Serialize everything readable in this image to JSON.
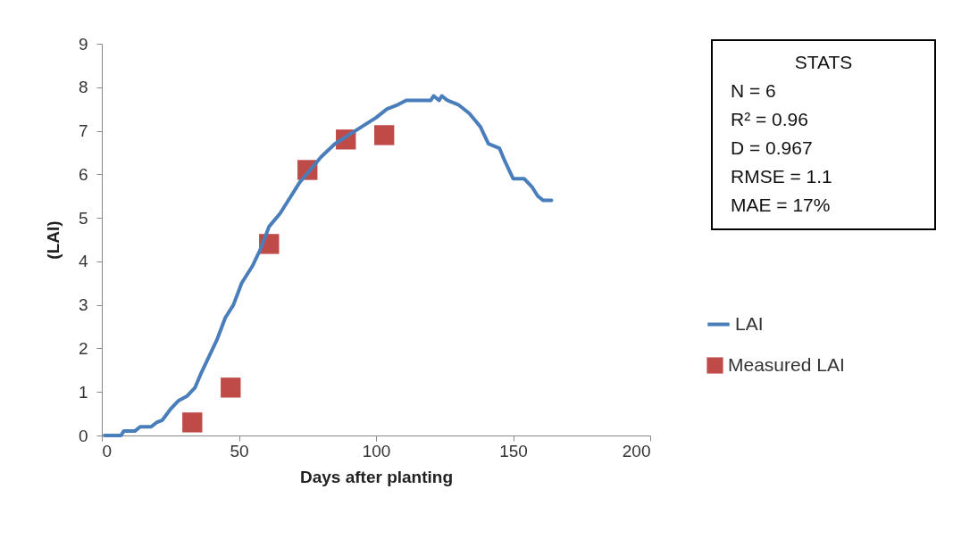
{
  "chart_data": {
    "type": "line",
    "xlabel": "Days after planting",
    "ylabel": "(LAI)",
    "xlim": [
      0,
      200
    ],
    "xticks": [
      0,
      50,
      100,
      150,
      200
    ],
    "ylim": [
      0,
      9
    ],
    "yticks": [
      0,
      1,
      2,
      3,
      4,
      5,
      6,
      7,
      8,
      9
    ],
    "grid": false,
    "legend": "right",
    "annotations": [
      "STATS",
      "N = 6",
      "R² = 0.96",
      "D = 0.967",
      "RMSE = 1.1",
      "MAE = 17%"
    ],
    "series": [
      {
        "name": "LAI",
        "color": "#4a7ebb",
        "x": [
          1,
          7,
          8,
          12,
          14,
          18,
          20,
          22,
          25,
          28,
          31,
          34,
          36,
          39,
          42,
          45,
          48,
          51,
          55,
          58,
          61,
          65,
          69,
          72,
          76,
          80,
          85,
          90,
          95,
          100,
          104,
          108,
          111,
          120,
          121,
          123,
          124,
          126,
          130,
          134,
          138,
          141,
          145,
          147,
          150,
          154,
          157,
          159,
          161,
          164
        ],
        "values": [
          0,
          0,
          0.1,
          0.1,
          0.2,
          0.2,
          0.3,
          0.35,
          0.6,
          0.8,
          0.9,
          1.1,
          1.4,
          1.8,
          2.2,
          2.7,
          3.0,
          3.5,
          3.9,
          4.3,
          4.8,
          5.1,
          5.5,
          5.8,
          6.1,
          6.4,
          6.7,
          6.9,
          7.1,
          7.3,
          7.5,
          7.6,
          7.7,
          7.7,
          7.8,
          7.7,
          7.8,
          7.7,
          7.6,
          7.4,
          7.1,
          6.7,
          6.6,
          6.3,
          5.9,
          5.9,
          5.7,
          5.5,
          5.4,
          5.4
        ]
      },
      {
        "name": "Measured LAI",
        "type": "scatter",
        "marker": "square",
        "color": "#be4b48",
        "x": [
          33,
          47,
          61,
          75,
          89,
          103
        ],
        "values": [
          0.3,
          1.1,
          4.4,
          6.1,
          6.8,
          6.9
        ]
      }
    ]
  }
}
